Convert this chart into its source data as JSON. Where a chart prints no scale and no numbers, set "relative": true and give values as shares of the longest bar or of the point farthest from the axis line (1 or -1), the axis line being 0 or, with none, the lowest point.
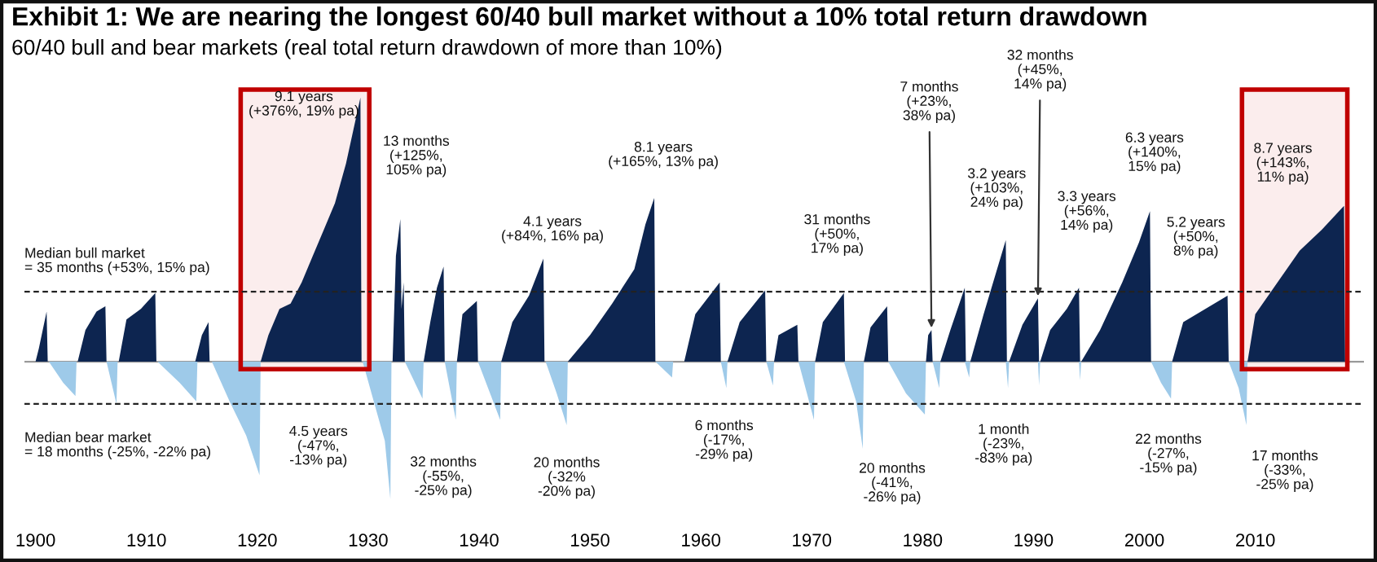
{
  "chart_data": {
    "type": "area",
    "relative": true,
    "title": "Exhibit 1: We are nearing the longest 60/40 bull market without a 10% total return drawdown",
    "subtitle": "60/40 bull and bear markets (real total return drawdown of more than 10%)",
    "xlim": [
      1899,
      2019.8
    ],
    "xticks": [
      1900,
      1910,
      1920,
      1930,
      1940,
      1950,
      1960,
      1970,
      1980,
      1990,
      2000,
      2010
    ],
    "series": [
      {
        "color": "#0d2550",
        "x": [
          1900.0,
          1900.3,
          1901.0,
          1901.1,
          1903.8,
          1904.5,
          1905.5,
          1906.3,
          1906.4,
          1907.5,
          1908.2,
          1909.5,
          1910.8,
          1910.9,
          1914.4,
          1915.0,
          1915.6,
          1915.7,
          1920.3,
          1921.0,
          1922.0,
          1923.0,
          1924.0,
          1925.0,
          1926.0,
          1927.0,
          1928.0,
          1929.3,
          1929.4,
          1932.2,
          1932.5,
          1932.9,
          1933.0,
          1933.2,
          1933.3,
          1935.0,
          1935.6,
          1936.2,
          1936.8,
          1936.9,
          1938.0,
          1938.5,
          1939.8,
          1939.9,
          1942.0,
          1943.0,
          1944.5,
          1945.8,
          1945.9,
          1948.0,
          1950.0,
          1952.0,
          1954.0,
          1955.0,
          1955.8,
          1955.9,
          1958.5,
          1959.5,
          1961.7,
          1961.8,
          1962.4,
          1963.5,
          1965.8,
          1965.9,
          1966.6,
          1967.0,
          1968.7,
          1968.8,
          1970.3,
          1971.0,
          1972.9,
          1973.0,
          1974.7,
          1975.3,
          1976.8,
          1976.9,
          1980.3,
          1980.5,
          1980.8,
          1980.9,
          1981.6,
          1982.5,
          1983.8,
          1983.9,
          1984.3,
          1985.5,
          1986.5,
          1987.5,
          1987.6,
          1987.8,
          1989.0,
          1990.4,
          1990.5,
          1990.6,
          1991.5,
          1993.0,
          1994.1,
          1994.2,
          1994.3,
          1996.0,
          1998.0,
          1999.5,
          2000.5,
          2000.6,
          2002.5,
          2003.5,
          2005.5,
          2007.5,
          2007.6,
          2009.3,
          2010.0,
          2012.0,
          2014.0,
          2016.0,
          2018.0,
          2018.1
        ],
        "values": [
          0,
          0.05,
          0.19,
          0,
          0,
          0.12,
          0.19,
          0.21,
          0,
          0,
          0.16,
          0.2,
          0.26,
          0,
          0,
          0.1,
          0.15,
          0,
          0,
          0.1,
          0.2,
          0.22,
          0.3,
          0.4,
          0.5,
          0.6,
          0.75,
          1.0,
          0,
          0,
          0.4,
          0.54,
          0.2,
          0.3,
          0,
          0,
          0.15,
          0.28,
          0.36,
          0,
          0,
          0.18,
          0.23,
          0,
          0,
          0.15,
          0.25,
          0.39,
          0,
          0,
          0.1,
          0.22,
          0.35,
          0.52,
          0.62,
          0,
          0,
          0.18,
          0.3,
          0,
          0,
          0.15,
          0.27,
          0,
          0,
          0.1,
          0.14,
          0,
          0,
          0.15,
          0.26,
          0,
          0,
          0.13,
          0.21,
          0,
          0,
          0.1,
          0.12,
          0,
          0,
          0.12,
          0.28,
          0,
          0,
          0.18,
          0.32,
          0.46,
          0,
          0,
          0.14,
          0.24,
          0,
          0,
          0.12,
          0.2,
          0.28,
          0,
          0,
          0.12,
          0.3,
          0.45,
          0.57,
          0,
          0,
          0.15,
          0.2,
          0.25,
          0,
          0,
          0.18,
          0.3,
          0.42,
          0.5,
          0.59,
          0
        ]
      },
      {
        "color": "#9ecae9",
        "x": [
          1901.2,
          1902.5,
          1903.6,
          1903.7,
          1906.4,
          1907.3,
          1907.4,
          1911.0,
          1913.0,
          1914.5,
          1914.6,
          1915.9,
          1917.5,
          1919.0,
          1920.2,
          1920.3,
          1929.5,
          1930.5,
          1931.5,
          1932.0,
          1932.1,
          1933.3,
          1934.9,
          1935.0,
          1936.9,
          1937.9,
          1938.0,
          1939.9,
          1941.9,
          1942.0,
          1946.0,
          1947.0,
          1947.9,
          1948.0,
          1955.9,
          1957.4,
          1957.5,
          1961.8,
          1962.3,
          1962.4,
          1965.9,
          1966.5,
          1966.6,
          1968.8,
          1970.2,
          1970.3,
          1972.9,
          1974.0,
          1974.6,
          1974.7,
          1976.9,
          1978.5,
          1980.2,
          1980.3,
          1980.9,
          1981.5,
          1981.6,
          1983.8,
          1984.2,
          1984.3,
          1987.5,
          1987.7,
          1987.8,
          1990.4,
          1990.5,
          1990.6,
          1994.1,
          1994.2,
          1994.3,
          2000.6,
          2001.5,
          2002.4,
          2002.5,
          2007.6,
          2008.5,
          2009.2,
          2009.3
        ],
        "values": [
          0,
          -0.08,
          -0.13,
          0,
          0,
          -0.16,
          0,
          0,
          -0.08,
          -0.15,
          0,
          0,
          -0.15,
          -0.28,
          -0.43,
          0,
          0,
          -0.15,
          -0.3,
          -0.52,
          0,
          0,
          -0.14,
          0,
          0,
          -0.22,
          0,
          0,
          -0.22,
          0,
          0,
          -0.12,
          -0.24,
          0,
          0,
          -0.06,
          0,
          0,
          -0.1,
          0,
          0,
          -0.09,
          0,
          0,
          -0.22,
          0,
          0,
          -0.15,
          -0.33,
          0,
          0,
          -0.12,
          -0.2,
          0,
          0,
          -0.1,
          0,
          0,
          -0.06,
          0,
          0,
          -0.1,
          0,
          0,
          -0.09,
          0,
          0,
          -0.07,
          0,
          0,
          -0.08,
          -0.14,
          0,
          0,
          -0.1,
          -0.24,
          0
        ]
      }
    ],
    "ref_lines": [
      {
        "axis": "y",
        "value": 0.265,
        "color": "#222222",
        "line_style": "dashed"
      },
      {
        "axis": "y",
        "value": -0.16,
        "color": "#222222",
        "line_style": "dashed"
      }
    ],
    "bands": [
      {
        "axis": "x",
        "from": 1918.5,
        "to": 1930.1,
        "color": "#c00000"
      },
      {
        "axis": "x",
        "from": 2008.8,
        "to": 2018.3,
        "color": "#c00000"
      }
    ],
    "annotations": [
      {
        "text": "9.1 years\n(+376%, 19% pa)",
        "x": 1929.3,
        "y": 1.0
      },
      {
        "text": "13 months\n(+125%,\n105% pa)",
        "x": 1932.9,
        "y": 0.54
      },
      {
        "text": "4.1 years\n(+84%, 16% pa)",
        "x": 1945.8,
        "y": 0.39
      },
      {
        "text": "8.1 years\n(+165%, 13% pa)",
        "x": 1955.8,
        "y": 0.62
      },
      {
        "text": "31 months\n(+50%,\n17% pa)",
        "x": 1972.9,
        "y": 0.26
      },
      {
        "text": "7 months\n(+23%,\n38% pa)",
        "x": 1980.8,
        "y": 0.12
      },
      {
        "text": "3.2 years\n(+103%,\n24% pa)",
        "x": 1987.5,
        "y": 0.46
      },
      {
        "text": "32 months\n(+45%,\n14% pa)",
        "x": 1990.4,
        "y": 0.24
      },
      "3.3 years\n(+56%,\n14% pa)",
      {
        "text": "6.3 years\n(+140%,\n15% pa)",
        "x": 2000.5,
        "y": 0.57
      },
      {
        "text": "5.2 years\n(+50%,\n8% pa)",
        "x": 2007.5,
        "y": 0.25
      },
      {
        "text": "8.7 years\n(+143%,\n11% pa)",
        "x": 2018.0,
        "y": 0.59
      },
      {
        "text": "4.5 years\n(-47%,\n-13% pa)",
        "x": 1920.2,
        "y": -0.43
      },
      "32 months\n(-55%,\n-25% pa)",
      {
        "text": "20 months\n(-32%\n-20% pa)",
        "x": 1947.9,
        "y": -0.24
      },
      {
        "text": "6 months\n(-17%,\n-29% pa)",
        "x": 1962.3,
        "y": -0.1
      },
      {
        "text": "20 months\n(-41%,\n-26% pa)",
        "x": 1974.6,
        "y": -0.33
      },
      "1 month\n(-23%,\n-83% pa)",
      "22 months\n(-27%,\n-15% pa)",
      {
        "text": "17 months\n(-33%,\n-25% pa)",
        "x": 2009.2,
        "y": -0.24
      },
      "Median bull market\n= 35 months (+53%, 15% pa)",
      "Median bear market\n= 18 months (-25%, -22% pa)"
    ]
  }
}
